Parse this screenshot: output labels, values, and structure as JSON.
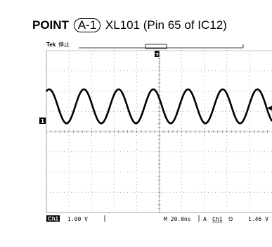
{
  "header": {
    "point_word": "POINT",
    "point_id": "A-1",
    "signal": "XL101 (Pin 65 of IC12)"
  },
  "scope": {
    "brand": "Tek",
    "state": "停止",
    "trigger_marker": "T",
    "ch1_ground_marker": "1",
    "right_level_marker": "◀",
    "bottom": {
      "channel_tag": "Ch1",
      "ch1_scale": "1.00 V",
      "timebase": "M 20.0ns",
      "trigger_mode": "A",
      "trigger_source": "Ch1",
      "trigger_slope": "⅁",
      "trigger_level": "1.46 V"
    },
    "waveform": {
      "type": "sine",
      "cycles_visible": 6.5,
      "peak_div": 1.6,
      "offset_div": 0.5
    },
    "colors": {
      "grid": "#8a8a8a",
      "trace": "#000000"
    }
  }
}
